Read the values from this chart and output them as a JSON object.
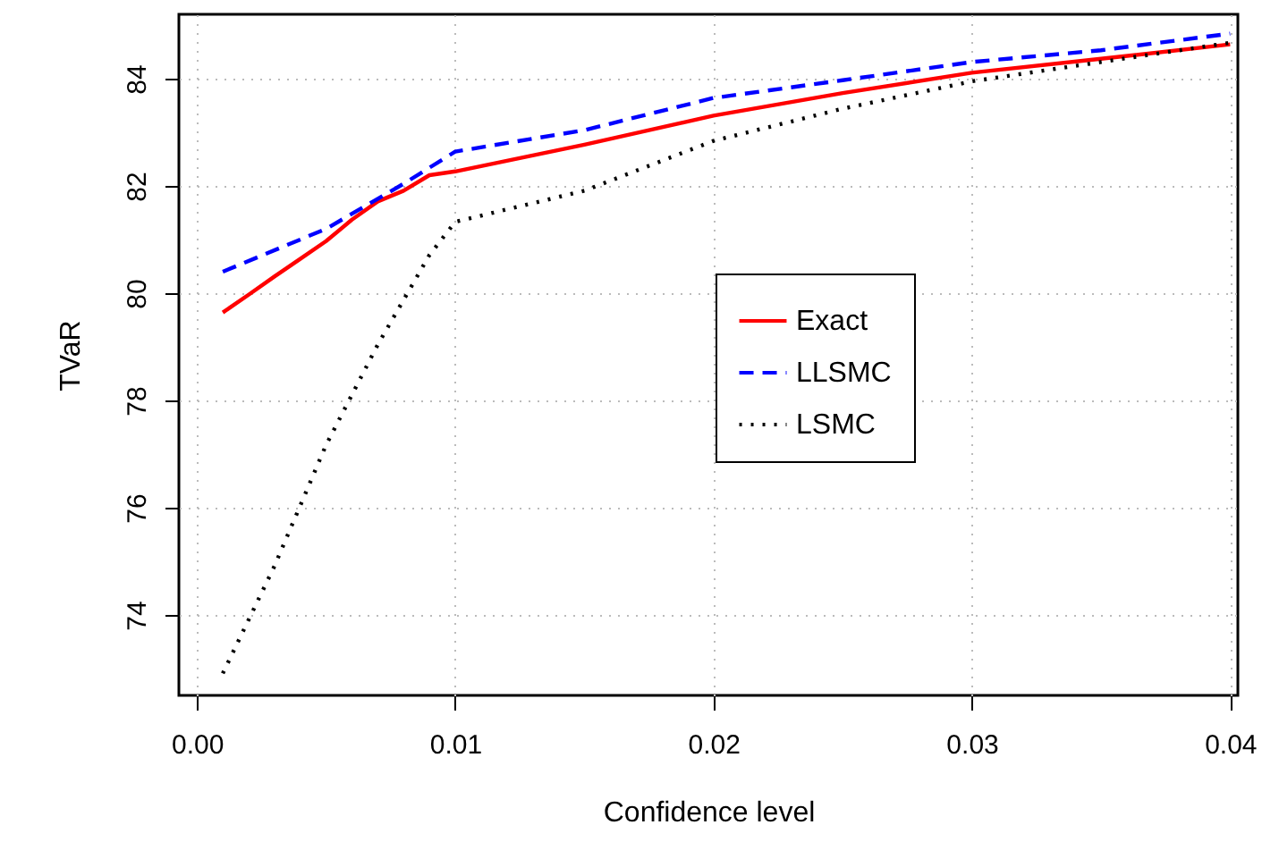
{
  "chart_data": {
    "type": "line",
    "xlabel": "Confidence level",
    "ylabel": "TVaR",
    "xlim": [
      -0.0007,
      0.0403
    ],
    "ylim": [
      72.5,
      85.2
    ],
    "xticks": [
      {
        "value": 0,
        "label": "0.00"
      },
      {
        "value": 0.01,
        "label": "0.01"
      },
      {
        "value": 0.02,
        "label": "0.02"
      },
      {
        "value": 0.03,
        "label": "0.03"
      },
      {
        "value": 0.04,
        "label": "0.04"
      }
    ],
    "yticks": [
      74,
      76,
      78,
      80,
      82,
      84
    ],
    "grid": true,
    "legend": "center",
    "marker": "none",
    "series": [
      {
        "name": "Exact",
        "color": "#ff0000",
        "line_style": "solid",
        "x": [
          0.001,
          0.002,
          0.003,
          0.004,
          0.005,
          0.006,
          0.007,
          0.008,
          0.009,
          0.01,
          0.015,
          0.02,
          0.025,
          0.03,
          0.035,
          0.04
        ],
        "values": [
          79.64,
          79.97,
          80.31,
          80.64,
          80.97,
          81.37,
          81.71,
          81.91,
          82.2,
          82.27,
          82.77,
          83.31,
          83.73,
          84.11,
          84.37,
          84.64
        ]
      },
      {
        "name": "LLSMC",
        "color": "#0000ff",
        "line_style": "dashed",
        "x": [
          0.001,
          0.005,
          0.008,
          0.01,
          0.015,
          0.02,
          0.025,
          0.03,
          0.035,
          0.04
        ],
        "values": [
          80.4,
          81.2,
          82.04,
          82.64,
          83.04,
          83.64,
          83.97,
          84.31,
          84.53,
          84.84
        ]
      },
      {
        "name": "LSMC",
        "color": "#000000",
        "line_style": "dotted",
        "x": [
          0.001,
          0.003,
          0.005,
          0.007,
          0.009,
          0.01,
          0.015,
          0.02,
          0.025,
          0.03,
          0.035,
          0.04
        ],
        "values": [
          72.91,
          74.91,
          77.17,
          79.04,
          80.71,
          81.33,
          81.91,
          82.84,
          83.44,
          83.95,
          84.31,
          84.67
        ]
      }
    ]
  }
}
